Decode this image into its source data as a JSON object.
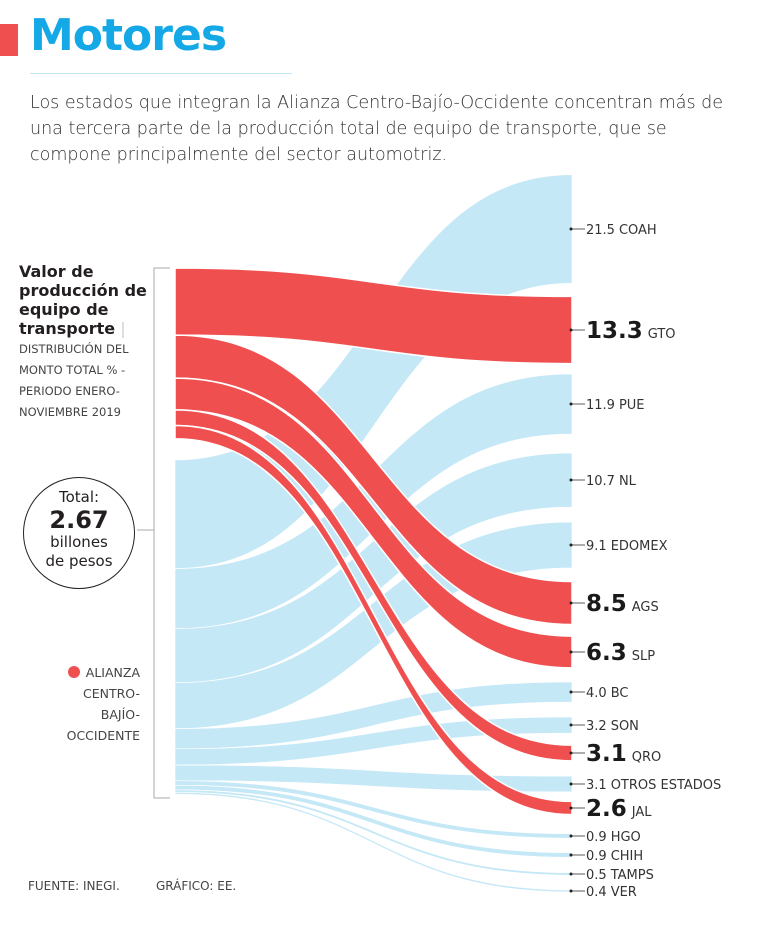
{
  "title": "Motores",
  "intro": "Los estados que integran la Alianza Centro-Bajío-Occidente concentran más de una tercera parte de la producción total de equipo de transporte, que se compone principalmente del sector automotriz.",
  "left": {
    "heading": "Valor de producción de equipo de transporte",
    "separator": "|",
    "subheading": "DISTRIBUCIÓN DEL MONTO TOTAL % - PERIODO ENERO-NOVIEMBRE 2019"
  },
  "total": {
    "label": "Total:",
    "value": "2.67",
    "unit1": "billones",
    "unit2": "de pesos"
  },
  "legend": {
    "label": "ALIANZA CENTRO-BAJÍO-OCCIDENTE",
    "color": "#ef4f4f"
  },
  "footer": {
    "source": "FUENTE: INEGI.",
    "credit": "GRÁFICO: EE."
  },
  "chart_data": {
    "type": "sankey",
    "source": "Total",
    "unit": "%",
    "colors": {
      "alianza": "#ef4f4f",
      "other": "#c5e8f7"
    },
    "flows": [
      {
        "state": "COAH",
        "value": 21.5,
        "alianza": false
      },
      {
        "state": "GTO",
        "value": 13.3,
        "alianza": true
      },
      {
        "state": "PUE",
        "value": 11.9,
        "alianza": false
      },
      {
        "state": "NL",
        "value": 10.7,
        "alianza": false
      },
      {
        "state": "EDOMEX",
        "value": 9.1,
        "alianza": false
      },
      {
        "state": "AGS",
        "value": 8.5,
        "alianza": true
      },
      {
        "state": "SLP",
        "value": 6.3,
        "alianza": true
      },
      {
        "state": "BC",
        "value": 4.0,
        "alianza": false
      },
      {
        "state": "SON",
        "value": 3.2,
        "alianza": false
      },
      {
        "state": "QRO",
        "value": 3.1,
        "alianza": true
      },
      {
        "state": "OTROS ESTADOS",
        "value": 3.1,
        "alianza": false
      },
      {
        "state": "JAL",
        "value": 2.6,
        "alianza": true
      },
      {
        "state": "HGO",
        "value": 0.9,
        "alianza": false
      },
      {
        "state": "CHIH",
        "value": 0.9,
        "alianza": false
      },
      {
        "state": "TAMPS",
        "value": 0.5,
        "alianza": false
      },
      {
        "state": "VER",
        "value": 0.4,
        "alianza": false
      }
    ]
  }
}
